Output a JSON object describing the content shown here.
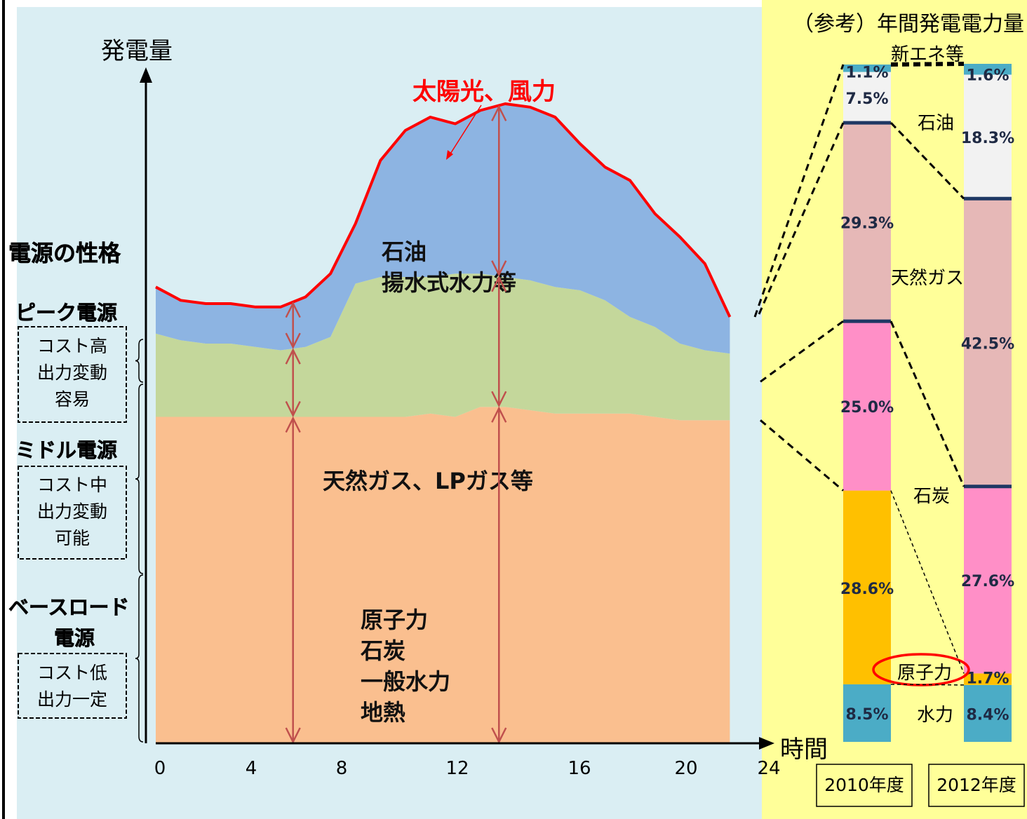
{
  "chart_data": [
    {
      "type": "area",
      "ylabel": "発電量",
      "xlabel": "時間",
      "x_ticks": [
        "0",
        "4",
        "8",
        "12",
        "16",
        "20",
        "24"
      ],
      "xlim": [
        0,
        24
      ],
      "ylim": [
        0,
        100
      ],
      "hours": [
        0,
        1,
        2,
        3,
        4,
        5,
        6,
        7,
        8,
        9,
        10,
        11,
        12,
        13,
        14,
        15,
        16,
        17,
        18,
        19,
        20,
        21,
        22,
        23
      ],
      "series": [
        {
          "label_lines": [
            "原子力",
            "石炭",
            "一般水力",
            "地熱"
          ],
          "color": "#fabf8f",
          "top": [
            49,
            49,
            49,
            49,
            49,
            49,
            49,
            49,
            49,
            49,
            49,
            49.5,
            49,
            50.5,
            50.5,
            50,
            49.5,
            49.5,
            49.5,
            49.5,
            49,
            48.5,
            48.5,
            48.5
          ]
        },
        {
          "label_lines": [
            "天然ガス、LPガス等"
          ],
          "color": "#c4d79b",
          "top": [
            61.5,
            60.5,
            60,
            60,
            59.5,
            59,
            59.5,
            61,
            69,
            70,
            70,
            70,
            70.5,
            70.5,
            70,
            69.5,
            68.5,
            68,
            66.5,
            64,
            62.5,
            60,
            59,
            58.5
          ]
        },
        {
          "label_lines": [
            "石油",
            "揚水式水力等"
          ],
          "color": "#8db4e2",
          "top": [
            68.5,
            66.5,
            66,
            66,
            65.5,
            65.5,
            67,
            70.5,
            78,
            87.5,
            92,
            94,
            93,
            95,
            96,
            95.5,
            94,
            90,
            86.5,
            84.5,
            79.5,
            76,
            72,
            64
          ]
        }
      ],
      "line_series": {
        "name": "太陽光、風力",
        "color": "#ff0000"
      },
      "y_categories": [
        {
          "title": "ピーク電源",
          "lines": [
            "コスト高",
            "出力変動",
            "容易"
          ]
        },
        {
          "title": "ミドル電源",
          "lines": [
            "コスト中",
            "出力変動",
            "可能"
          ]
        },
        {
          "title_lines": [
            "ベースロード",
            "電源"
          ],
          "lines": [
            "コスト低",
            "出力一定"
          ]
        }
      ],
      "y_axis_group_title": "電源の性格"
    },
    {
      "type": "bar",
      "stacked": true,
      "title": "（参考）年間発電電力量",
      "categories": [
        "2010年度",
        "2012年度"
      ],
      "series": [
        {
          "name": "水力",
          "color": "#4bacc6",
          "values": [
            8.5,
            8.4
          ],
          "labels": [
            "8.5%",
            "8.4%"
          ]
        },
        {
          "name": "原子力",
          "color": "#ffc000",
          "values": [
            28.6,
            1.7
          ],
          "labels": [
            "28.6%",
            "1.7%"
          ]
        },
        {
          "name": "石炭",
          "color": "#ff8fc7",
          "values": [
            25.0,
            27.6
          ],
          "labels": [
            "25.0%",
            "27.6%"
          ]
        },
        {
          "name": "天然ガス",
          "color": "#e6b8b7",
          "values": [
            29.3,
            42.5
          ],
          "labels": [
            "29.3%",
            "42.5%"
          ]
        },
        {
          "name": "石油",
          "color": "#f2f2f2",
          "values": [
            7.5,
            18.3
          ],
          "labels": [
            "7.5%",
            "18.3%"
          ]
        },
        {
          "name": "新エネ等",
          "color": "#4bacc6",
          "values": [
            1.1,
            1.6
          ],
          "labels": [
            "1.1%",
            "1.6%"
          ]
        }
      ]
    }
  ],
  "colors": {
    "left_panel_bg": "#daeef3",
    "right_panel_bg": "#ffff99",
    "arrow": "#c0504d",
    "line": "#ff0000",
    "divider": "#1f3864"
  }
}
